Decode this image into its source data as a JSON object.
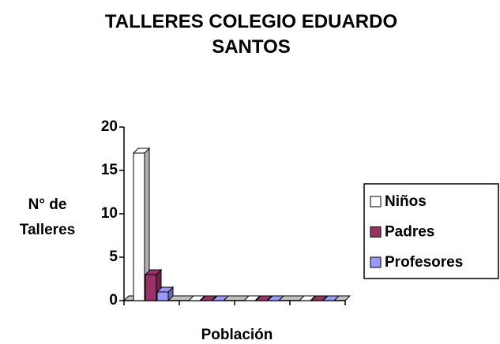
{
  "chart_data": {
    "type": "bar3d",
    "title": "TALLERES COLEGIO EDUARDO SANTOS",
    "xlabel": "Población",
    "ylabel": "N° de Talleres",
    "categories": [
      null,
      null,
      null,
      null
    ],
    "series": [
      {
        "name": "Niños",
        "color": "#ffffff",
        "values": [
          17,
          0,
          0,
          0
        ]
      },
      {
        "name": "Padres",
        "color": "#993366",
        "values": [
          3,
          0,
          0,
          0
        ]
      },
      {
        "name": "Profesores",
        "color": "#9999ff",
        "values": [
          1,
          0,
          0,
          0
        ]
      }
    ],
    "ylim": [
      0,
      20
    ],
    "yticks": [
      0,
      5,
      10,
      15,
      20
    ],
    "legend": "right"
  }
}
